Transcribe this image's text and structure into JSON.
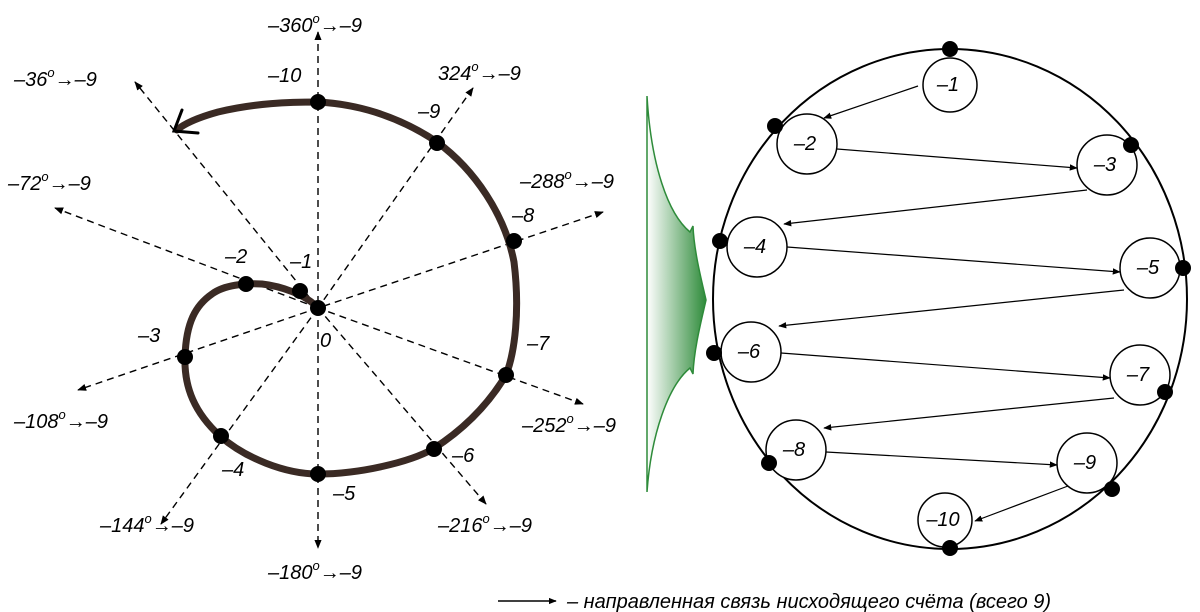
{
  "spiral": {
    "center_label": "0",
    "point_labels": [
      "–1",
      "–2",
      "–3",
      "–4",
      "–5",
      "–6",
      "–7",
      "–8",
      "–9",
      "–10"
    ],
    "axes": [
      {
        "a": "–360",
        "b": "–9"
      },
      {
        "a": "324",
        "b": "–9"
      },
      {
        "a": "–288",
        "b": "–9"
      },
      {
        "a": "–252",
        "b": "–9"
      },
      {
        "a": "–216",
        "b": "–9"
      },
      {
        "a": "–180",
        "b": "–9"
      },
      {
        "a": "–144",
        "b": "–9"
      },
      {
        "a": "–108",
        "b": "–9"
      },
      {
        "a": "–72",
        "b": "–9"
      },
      {
        "a": "–36",
        "b": "–9"
      }
    ]
  },
  "circle": {
    "nodes": [
      "–1",
      "–2",
      "–3",
      "–4",
      "–5",
      "–6",
      "–7",
      "–8",
      "–9",
      "–10"
    ]
  },
  "legend": {
    "text": "– направленная связь нисходящего счёта (всего 9)"
  },
  "colors": {
    "spiral_stroke": "#3a2a24",
    "funnel": "#2e8b3a"
  }
}
